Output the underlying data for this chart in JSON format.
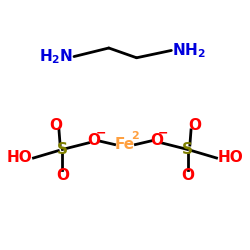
{
  "bg_color": "#ffffff",
  "en_color": "#0000dd",
  "s_color": "#808000",
  "o_color": "#ff0000",
  "fe_color": "#ffa040",
  "bond_color": "#000000",
  "figsize": [
    2.5,
    2.5
  ],
  "dpi": 100,
  "xlim": [
    0,
    10
  ],
  "ylim": [
    0,
    10
  ]
}
